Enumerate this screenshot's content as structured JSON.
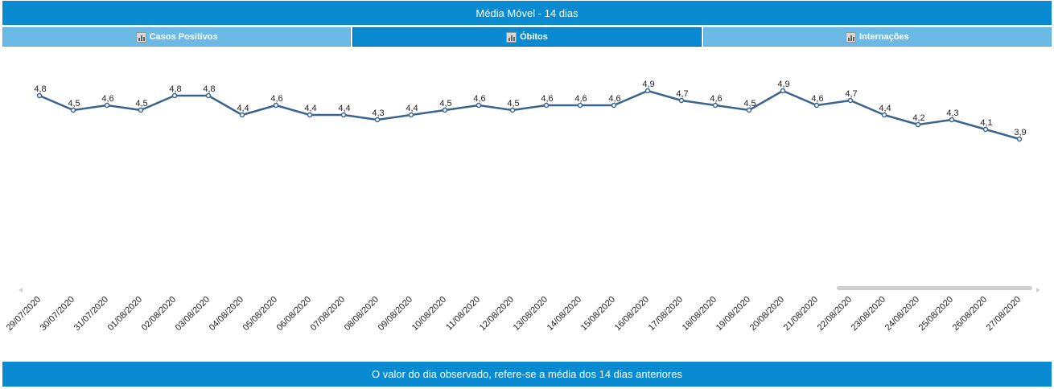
{
  "header": {
    "title": "Média Móvel - 14 dias"
  },
  "tabs": [
    {
      "label": "Casos Positivos",
      "icon": "bar-chart-icon",
      "active": false
    },
    {
      "label": "Óbitos",
      "icon": "bar-chart-icon",
      "active": true
    },
    {
      "label": "Internações",
      "icon": "bar-chart-icon",
      "active": false
    }
  ],
  "footer": {
    "text": "O valor do dia observado, refere-se a média dos 14 dias anteriores"
  },
  "colors": {
    "header_bg": "#0a8bd1",
    "tab_inactive": "#6abae5",
    "line": "#3a6390"
  },
  "chart_data": {
    "type": "line",
    "title": "",
    "xlabel": "",
    "ylabel": "",
    "grid": false,
    "categories": [
      "29/07/2020",
      "30/07/2020",
      "31/07/2020",
      "01/08/2020",
      "02/08/2020",
      "03/08/2020",
      "04/08/2020",
      "05/08/2020",
      "06/08/2020",
      "07/08/2020",
      "08/08/2020",
      "09/08/2020",
      "10/08/2020",
      "11/08/2020",
      "12/08/2020",
      "13/08/2020",
      "14/08/2020",
      "15/08/2020",
      "16/08/2020",
      "17/08/2020",
      "18/08/2020",
      "19/08/2020",
      "20/08/2020",
      "21/08/2020",
      "22/08/2020",
      "23/08/2020",
      "24/08/2020",
      "25/08/2020",
      "26/08/2020",
      "27/08/2020"
    ],
    "series": [
      {
        "values": [
          4.8,
          4.5,
          4.6,
          4.5,
          4.8,
          4.8,
          4.4,
          4.6,
          4.4,
          4.4,
          4.3,
          4.4,
          4.5,
          4.6,
          4.5,
          4.6,
          4.6,
          4.6,
          4.9,
          4.7,
          4.6,
          4.5,
          4.9,
          4.6,
          4.7,
          4.4,
          4.2,
          4.3,
          4.1,
          3.9
        ],
        "labels": [
          "4,8",
          "4,5",
          "4,6",
          "4,5",
          "4,8",
          "4,8",
          "4,4",
          "4,6",
          "4,4",
          "4,4",
          "4,3",
          "4,4",
          "4,5",
          "4,6",
          "4,5",
          "4,6",
          "4,6",
          "4,6",
          "4,9",
          "4,7",
          "4,6",
          "4,5",
          "4,9",
          "4,6",
          "4,7",
          "4,4",
          "4,2",
          "4,3",
          "4,1",
          "3,9"
        ]
      }
    ]
  }
}
